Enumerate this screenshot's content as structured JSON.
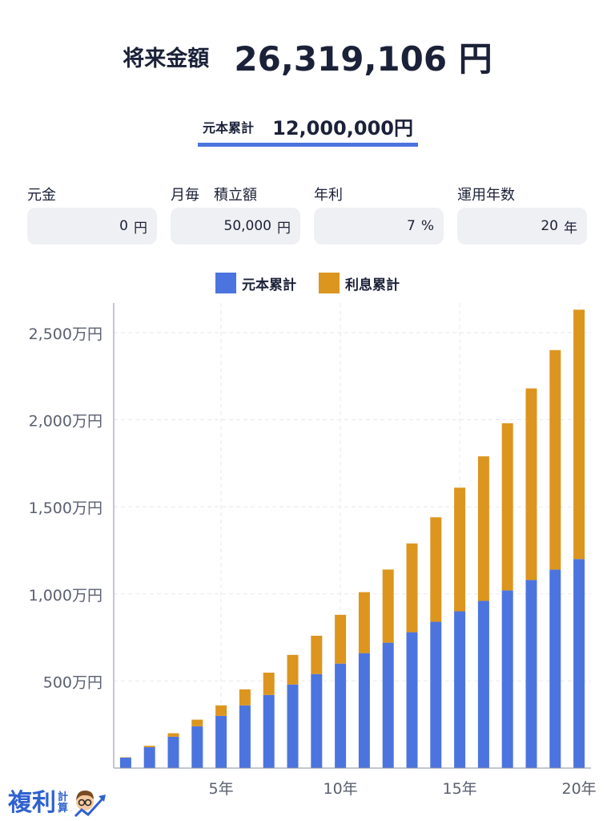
{
  "summary": {
    "future_label": "将来金額",
    "future_amount": "26,319,106 円",
    "principal_label": "元本累計",
    "principal_amount": "12,000,000円"
  },
  "inputs": {
    "initial": {
      "label": "元金",
      "value": "0",
      "unit": "円"
    },
    "monthly": {
      "label": "月毎　積立額",
      "value": "50,000",
      "unit": "円"
    },
    "rate": {
      "label": "年利",
      "value": "7",
      "unit": "%"
    },
    "years": {
      "label": "運用年数",
      "value": "20",
      "unit": "年"
    }
  },
  "logo": {
    "main": "複利",
    "sub": "計算"
  },
  "colors": {
    "principal": "#4c74de",
    "interest": "#dc951e",
    "accent": "#4c74de"
  },
  "chart_data": {
    "type": "bar",
    "stacked": true,
    "legend_position": "top",
    "grid": true,
    "x": [
      1,
      2,
      3,
      4,
      5,
      6,
      7,
      8,
      9,
      10,
      11,
      12,
      13,
      14,
      15,
      16,
      17,
      18,
      19,
      20
    ],
    "x_tick_values": [
      5,
      10,
      15,
      20
    ],
    "x_tick_labels": [
      "5年",
      "10年",
      "15年",
      "20年"
    ],
    "ylim": [
      0,
      2670
    ],
    "y_tick_values": [
      500,
      1000,
      1500,
      2000,
      2500
    ],
    "y_tick_labels": [
      "500万円",
      "1,000万円",
      "1,500万円",
      "2,000万円",
      "2,500万円"
    ],
    "series": [
      {
        "name": "元本累計",
        "color": "#4c74de",
        "values": [
          60,
          120,
          180,
          240,
          300,
          360,
          420,
          480,
          540,
          600,
          660,
          720,
          780,
          840,
          900,
          960,
          1020,
          1080,
          1140,
          1200
        ]
      },
      {
        "name": "利息累計",
        "color": "#dc951e",
        "values": [
          2,
          8,
          20,
          38,
          60,
          92,
          128,
          170,
          220,
          280,
          350,
          420,
          510,
          600,
          710,
          830,
          960,
          1100,
          1260,
          1432
        ]
      }
    ]
  }
}
